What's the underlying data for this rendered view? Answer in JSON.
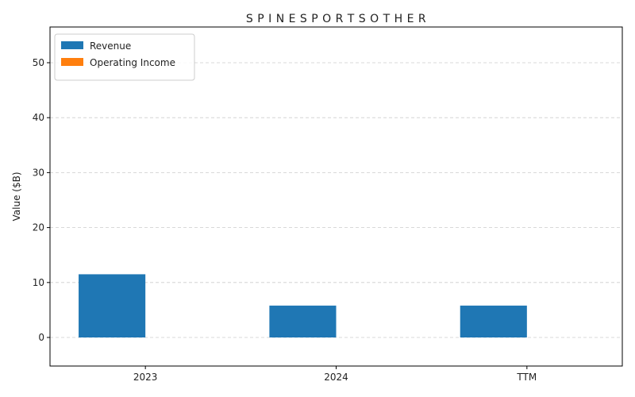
{
  "chart_data": {
    "type": "bar",
    "title": "S P I N E S P O R T S O T H E R",
    "xlabel": "",
    "ylabel": "Value ($B)",
    "categories": [
      "2023",
      "2024",
      "TTM"
    ],
    "series": [
      {
        "name": "Revenue",
        "values": [
          11.5,
          5.8,
          5.8
        ],
        "color": "#1f77b4"
      },
      {
        "name": "Operating Income",
        "values": [
          0,
          0,
          0
        ],
        "color": "#ff7f0e"
      }
    ],
    "ylim": [
      -5.2,
      56.5
    ],
    "yticks": [
      0,
      10,
      20,
      30,
      40,
      50
    ],
    "grid": true,
    "legend_position": "top-left"
  }
}
